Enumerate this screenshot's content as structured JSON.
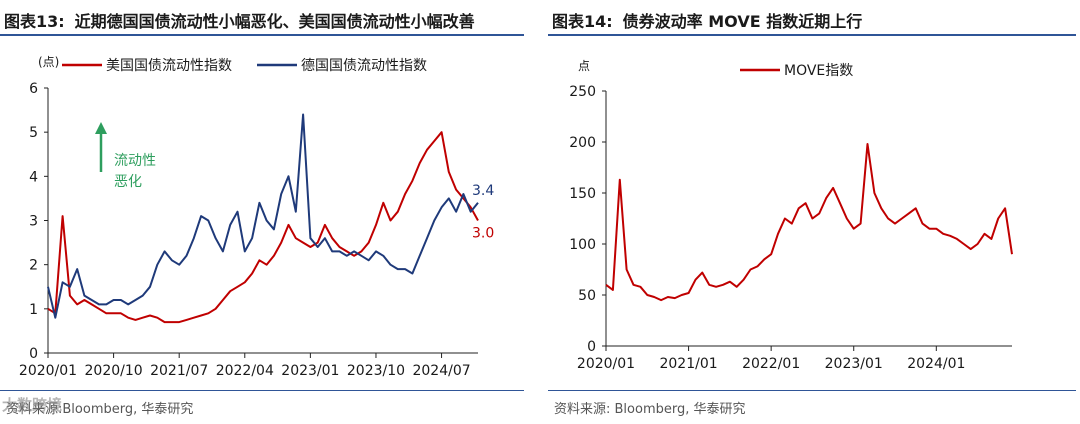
{
  "left": {
    "title_num": "图表13:",
    "title": "近期德国国债流动性小幅恶化、美国国债流动性小幅改善",
    "source": "资料来源:Bloomberg, 华泰研究",
    "watermark": "大数跨境",
    "annotation": [
      "流动性",
      "恶化"
    ],
    "colors": {
      "us": "#c00000",
      "de": "#1f3a7a",
      "annotation": "#2e9e5e",
      "rule": "#2f5597"
    }
  },
  "right": {
    "title_num": "图表14:",
    "title": "债券波动率 MOVE 指数近期上行",
    "source": "资料来源: Bloomberg, 华泰研究",
    "colors": {
      "move": "#c00000"
    }
  },
  "chart_data": [
    {
      "type": "line",
      "ylabel": "(点)",
      "ylim": [
        0,
        6
      ],
      "yticks": [
        0,
        1,
        2,
        3,
        4,
        5,
        6
      ],
      "xlim": [
        "2020-01",
        "2024-12"
      ],
      "xticks": [
        "2020/01",
        "2020/10",
        "2021/07",
        "2022/04",
        "2023/01",
        "2023/10",
        "2024/07"
      ],
      "legend": "top",
      "end_labels": [
        {
          "text": "3.4",
          "series": "德国国债流动性指数",
          "color": "#1f3a7a"
        },
        {
          "text": "3.0",
          "series": "美国国债流动性指数",
          "color": "#c00000"
        }
      ],
      "series": [
        {
          "name": "美国国债流动性指数",
          "color": "#c00000",
          "points": [
            [
              "2020-01",
              1.0
            ],
            [
              "2020-02",
              0.9
            ],
            [
              "2020-03",
              3.1
            ],
            [
              "2020-04",
              1.3
            ],
            [
              "2020-05",
              1.1
            ],
            [
              "2020-06",
              1.2
            ],
            [
              "2020-07",
              1.1
            ],
            [
              "2020-08",
              1.0
            ],
            [
              "2020-09",
              0.9
            ],
            [
              "2020-10",
              0.9
            ],
            [
              "2020-11",
              0.9
            ],
            [
              "2020-12",
              0.8
            ],
            [
              "2021-01",
              0.75
            ],
            [
              "2021-02",
              0.8
            ],
            [
              "2021-03",
              0.85
            ],
            [
              "2021-04",
              0.8
            ],
            [
              "2021-05",
              0.7
            ],
            [
              "2021-06",
              0.7
            ],
            [
              "2021-07",
              0.7
            ],
            [
              "2021-08",
              0.75
            ],
            [
              "2021-09",
              0.8
            ],
            [
              "2021-10",
              0.85
            ],
            [
              "2021-11",
              0.9
            ],
            [
              "2021-12",
              1.0
            ],
            [
              "2022-01",
              1.2
            ],
            [
              "2022-02",
              1.4
            ],
            [
              "2022-03",
              1.5
            ],
            [
              "2022-04",
              1.6
            ],
            [
              "2022-05",
              1.8
            ],
            [
              "2022-06",
              2.1
            ],
            [
              "2022-07",
              2.0
            ],
            [
              "2022-08",
              2.2
            ],
            [
              "2022-09",
              2.5
            ],
            [
              "2022-10",
              2.9
            ],
            [
              "2022-11",
              2.6
            ],
            [
              "2022-12",
              2.5
            ],
            [
              "2023-01",
              2.4
            ],
            [
              "2023-02",
              2.5
            ],
            [
              "2023-03",
              2.9
            ],
            [
              "2023-04",
              2.6
            ],
            [
              "2023-05",
              2.4
            ],
            [
              "2023-06",
              2.3
            ],
            [
              "2023-07",
              2.2
            ],
            [
              "2023-08",
              2.3
            ],
            [
              "2023-09",
              2.5
            ],
            [
              "2023-10",
              2.9
            ],
            [
              "2023-11",
              3.4
            ],
            [
              "2023-12",
              3.0
            ],
            [
              "2024-01",
              3.2
            ],
            [
              "2024-02",
              3.6
            ],
            [
              "2024-03",
              3.9
            ],
            [
              "2024-04",
              4.3
            ],
            [
              "2024-05",
              4.6
            ],
            [
              "2024-06",
              4.8
            ],
            [
              "2024-07",
              5.0
            ],
            [
              "2024-08",
              4.1
            ],
            [
              "2024-09",
              3.7
            ],
            [
              "2024-10",
              3.5
            ],
            [
              "2024-11",
              3.3
            ],
            [
              "2024-12",
              3.0
            ]
          ]
        },
        {
          "name": "德国国债流动性指数",
          "color": "#1f3a7a",
          "points": [
            [
              "2020-01",
              1.5
            ],
            [
              "2020-02",
              0.8
            ],
            [
              "2020-03",
              1.6
            ],
            [
              "2020-04",
              1.5
            ],
            [
              "2020-05",
              1.9
            ],
            [
              "2020-06",
              1.3
            ],
            [
              "2020-07",
              1.2
            ],
            [
              "2020-08",
              1.1
            ],
            [
              "2020-09",
              1.1
            ],
            [
              "2020-10",
              1.2
            ],
            [
              "2020-11",
              1.2
            ],
            [
              "2020-12",
              1.1
            ],
            [
              "2021-01",
              1.2
            ],
            [
              "2021-02",
              1.3
            ],
            [
              "2021-03",
              1.5
            ],
            [
              "2021-04",
              2.0
            ],
            [
              "2021-05",
              2.3
            ],
            [
              "2021-06",
              2.1
            ],
            [
              "2021-07",
              2.0
            ],
            [
              "2021-08",
              2.2
            ],
            [
              "2021-09",
              2.6
            ],
            [
              "2021-10",
              3.1
            ],
            [
              "2021-11",
              3.0
            ],
            [
              "2021-12",
              2.6
            ],
            [
              "2022-01",
              2.3
            ],
            [
              "2022-02",
              2.9
            ],
            [
              "2022-03",
              3.2
            ],
            [
              "2022-04",
              2.3
            ],
            [
              "2022-05",
              2.6
            ],
            [
              "2022-06",
              3.4
            ],
            [
              "2022-07",
              3.0
            ],
            [
              "2022-08",
              2.8
            ],
            [
              "2022-09",
              3.6
            ],
            [
              "2022-10",
              4.0
            ],
            [
              "2022-11",
              3.2
            ],
            [
              "2022-12",
              5.4
            ],
            [
              "2023-01",
              2.6
            ],
            [
              "2023-02",
              2.4
            ],
            [
              "2023-03",
              2.6
            ],
            [
              "2023-04",
              2.3
            ],
            [
              "2023-05",
              2.3
            ],
            [
              "2023-06",
              2.2
            ],
            [
              "2023-07",
              2.3
            ],
            [
              "2023-08",
              2.2
            ],
            [
              "2023-09",
              2.1
            ],
            [
              "2023-10",
              2.3
            ],
            [
              "2023-11",
              2.2
            ],
            [
              "2023-12",
              2.0
            ],
            [
              "2024-01",
              1.9
            ],
            [
              "2024-02",
              1.9
            ],
            [
              "2024-03",
              1.8
            ],
            [
              "2024-04",
              2.2
            ],
            [
              "2024-05",
              2.6
            ],
            [
              "2024-06",
              3.0
            ],
            [
              "2024-07",
              3.3
            ],
            [
              "2024-08",
              3.5
            ],
            [
              "2024-09",
              3.2
            ],
            [
              "2024-10",
              3.6
            ],
            [
              "2024-11",
              3.2
            ],
            [
              "2024-12",
              3.4
            ]
          ]
        }
      ]
    },
    {
      "type": "line",
      "ylabel": "点",
      "ylim": [
        0,
        250
      ],
      "yticks": [
        0,
        50,
        100,
        150,
        200,
        250
      ],
      "xlim": [
        "2020-01",
        "2024-12"
      ],
      "xticks": [
        "2020/01",
        "2021/01",
        "2022/01",
        "2023/01",
        "2024/01"
      ],
      "legend": "top",
      "series": [
        {
          "name": "MOVE指数",
          "color": "#c00000",
          "points": [
            [
              "2020-01",
              60
            ],
            [
              "2020-02",
              55
            ],
            [
              "2020-03",
              163
            ],
            [
              "2020-04",
              75
            ],
            [
              "2020-05",
              60
            ],
            [
              "2020-06",
              58
            ],
            [
              "2020-07",
              50
            ],
            [
              "2020-08",
              48
            ],
            [
              "2020-09",
              45
            ],
            [
              "2020-10",
              48
            ],
            [
              "2020-11",
              47
            ],
            [
              "2020-12",
              50
            ],
            [
              "2021-01",
              52
            ],
            [
              "2021-02",
              65
            ],
            [
              "2021-03",
              72
            ],
            [
              "2021-04",
              60
            ],
            [
              "2021-05",
              58
            ],
            [
              "2021-06",
              60
            ],
            [
              "2021-07",
              63
            ],
            [
              "2021-08",
              58
            ],
            [
              "2021-09",
              65
            ],
            [
              "2021-10",
              75
            ],
            [
              "2021-11",
              78
            ],
            [
              "2021-12",
              85
            ],
            [
              "2022-01",
              90
            ],
            [
              "2022-02",
              110
            ],
            [
              "2022-03",
              125
            ],
            [
              "2022-04",
              120
            ],
            [
              "2022-05",
              135
            ],
            [
              "2022-06",
              140
            ],
            [
              "2022-07",
              125
            ],
            [
              "2022-08",
              130
            ],
            [
              "2022-09",
              145
            ],
            [
              "2022-10",
              155
            ],
            [
              "2022-11",
              140
            ],
            [
              "2022-12",
              125
            ],
            [
              "2023-01",
              115
            ],
            [
              "2023-02",
              120
            ],
            [
              "2023-03",
              198
            ],
            [
              "2023-04",
              150
            ],
            [
              "2023-05",
              135
            ],
            [
              "2023-06",
              125
            ],
            [
              "2023-07",
              120
            ],
            [
              "2023-08",
              125
            ],
            [
              "2023-09",
              130
            ],
            [
              "2023-10",
              135
            ],
            [
              "2023-11",
              120
            ],
            [
              "2023-12",
              115
            ],
            [
              "2024-01",
              115
            ],
            [
              "2024-02",
              110
            ],
            [
              "2024-03",
              108
            ],
            [
              "2024-04",
              105
            ],
            [
              "2024-05",
              100
            ],
            [
              "2024-06",
              95
            ],
            [
              "2024-07",
              100
            ],
            [
              "2024-08",
              110
            ],
            [
              "2024-09",
              105
            ],
            [
              "2024-10",
              125
            ],
            [
              "2024-11",
              135
            ],
            [
              "2024-12",
              90
            ]
          ]
        }
      ]
    }
  ]
}
